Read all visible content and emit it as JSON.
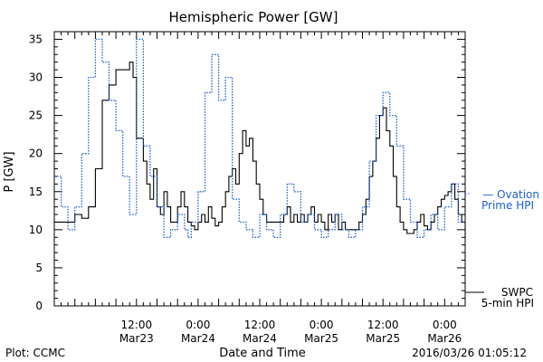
{
  "chart_data": {
    "type": "line",
    "title": "Hemispheric Power [GW]",
    "xlabel": "Date and Time",
    "ylabel": "P [GW]",
    "ylim": [
      0,
      36
    ],
    "yticks": [
      0,
      5,
      10,
      15,
      20,
      25,
      30,
      35
    ],
    "xlim": [
      -12,
      48
    ],
    "xticks": [
      {
        "x": 0,
        "time": "12:00",
        "date": "Mar23"
      },
      {
        "x": 9,
        "time": "0:00",
        "date": "Mar24"
      },
      {
        "x": 18,
        "time": "12:00",
        "date": "Mar24"
      },
      {
        "x": 27,
        "time": "0:00",
        "date": "Mar25"
      },
      {
        "x": 36,
        "time": "12:00",
        "date": "Mar25"
      },
      {
        "x": 45,
        "time": "0:00",
        "date": "Mar26"
      }
    ],
    "series": [
      {
        "name": "SWPC 5-min HPI",
        "color": "#000000",
        "style": "solid",
        "points": [
          [
            -12,
            11
          ],
          [
            -10,
            11
          ],
          [
            -9,
            12
          ],
          [
            -8,
            11.5
          ],
          [
            -7,
            13
          ],
          [
            -6,
            18
          ],
          [
            -5,
            27
          ],
          [
            -4,
            29
          ],
          [
            -3,
            31
          ],
          [
            -2,
            31
          ],
          [
            -1,
            32
          ],
          [
            -0.5,
            30
          ],
          [
            0,
            22
          ],
          [
            1,
            19
          ],
          [
            1.5,
            16
          ],
          [
            2,
            14
          ],
          [
            2.5,
            18
          ],
          [
            3,
            13
          ],
          [
            3.5,
            12
          ],
          [
            4,
            15
          ],
          [
            4.5,
            13
          ],
          [
            5,
            11
          ],
          [
            6,
            13
          ],
          [
            6.5,
            15
          ],
          [
            7,
            13
          ],
          [
            7.5,
            11
          ],
          [
            8,
            10.5
          ],
          [
            8.5,
            10
          ],
          [
            9,
            11
          ],
          [
            9.5,
            12
          ],
          [
            10,
            11
          ],
          [
            10.5,
            13
          ],
          [
            11,
            11.5
          ],
          [
            11.5,
            10.5
          ],
          [
            12,
            11
          ],
          [
            12.5,
            13
          ],
          [
            13,
            15
          ],
          [
            13.5,
            17
          ],
          [
            14,
            18
          ],
          [
            14.5,
            16
          ],
          [
            15,
            20
          ],
          [
            15.5,
            23
          ],
          [
            16,
            21
          ],
          [
            16.5,
            22
          ],
          [
            17,
            19
          ],
          [
            17.5,
            16
          ],
          [
            18,
            14
          ],
          [
            18.5,
            12
          ],
          [
            19,
            11
          ],
          [
            20,
            11
          ],
          [
            21,
            11
          ],
          [
            21.5,
            12
          ],
          [
            22,
            13
          ],
          [
            22.5,
            11
          ],
          [
            23,
            12
          ],
          [
            23.5,
            11
          ],
          [
            24,
            12
          ],
          [
            24.5,
            11
          ],
          [
            25,
            12
          ],
          [
            25.5,
            13
          ],
          [
            26,
            11
          ],
          [
            26.5,
            12
          ],
          [
            27,
            11
          ],
          [
            27.5,
            10
          ],
          [
            28,
            12
          ],
          [
            28.5,
            11
          ],
          [
            29,
            12
          ],
          [
            29.5,
            10
          ],
          [
            30,
            11
          ],
          [
            30.5,
            10
          ],
          [
            31,
            10
          ],
          [
            32,
            10
          ],
          [
            32.5,
            11
          ],
          [
            33,
            12
          ],
          [
            33.5,
            14
          ],
          [
            34,
            17
          ],
          [
            34.5,
            19
          ],
          [
            35,
            22
          ],
          [
            35.5,
            25
          ],
          [
            36,
            26
          ],
          [
            36.5,
            23
          ],
          [
            37,
            21
          ],
          [
            37.5,
            17
          ],
          [
            38,
            13
          ],
          [
            38.5,
            11
          ],
          [
            39,
            10
          ],
          [
            39.5,
            9.5
          ],
          [
            40,
            9.5
          ],
          [
            40.5,
            10
          ],
          [
            41,
            11
          ],
          [
            41.5,
            12
          ],
          [
            42,
            10.5
          ],
          [
            42.5,
            10
          ],
          [
            43,
            11
          ],
          [
            43.5,
            12
          ],
          [
            44,
            13
          ],
          [
            44.5,
            14
          ],
          [
            45,
            14.5
          ],
          [
            45.5,
            15
          ],
          [
            46,
            16
          ],
          [
            46.5,
            14
          ],
          [
            47,
            12
          ],
          [
            47.5,
            11
          ],
          [
            48,
            11
          ]
        ]
      },
      {
        "name": "Ovation Prime HPI",
        "color": "#1f5fcf",
        "style": "dotted",
        "points": [
          [
            -12,
            17
          ],
          [
            -11,
            13
          ],
          [
            -10,
            10
          ],
          [
            -9,
            13
          ],
          [
            -8,
            20
          ],
          [
            -7,
            30
          ],
          [
            -6,
            35
          ],
          [
            -5,
            32
          ],
          [
            -4,
            27
          ],
          [
            -3,
            23
          ],
          [
            -2,
            17
          ],
          [
            -1,
            12
          ],
          [
            0,
            35
          ],
          [
            1,
            21
          ],
          [
            2,
            17
          ],
          [
            3,
            13
          ],
          [
            4,
            9
          ],
          [
            5,
            10
          ],
          [
            6,
            12
          ],
          [
            7,
            10
          ],
          [
            7.5,
            9
          ],
          [
            8,
            11
          ],
          [
            9,
            15
          ],
          [
            10,
            28
          ],
          [
            11,
            33
          ],
          [
            12,
            27
          ],
          [
            13,
            30
          ],
          [
            14,
            14
          ],
          [
            15,
            11
          ],
          [
            16,
            10
          ],
          [
            17,
            9
          ],
          [
            18,
            12
          ],
          [
            19,
            10
          ],
          [
            20,
            9
          ],
          [
            21,
            12
          ],
          [
            22,
            16
          ],
          [
            23,
            15
          ],
          [
            24,
            11
          ],
          [
            25,
            12
          ],
          [
            26,
            10
          ],
          [
            27,
            9
          ],
          [
            28,
            10
          ],
          [
            29,
            12
          ],
          [
            30,
            10
          ],
          [
            31,
            9
          ],
          [
            32,
            10
          ],
          [
            33,
            13
          ],
          [
            34,
            19
          ],
          [
            35,
            25
          ],
          [
            36,
            28
          ],
          [
            37,
            25
          ],
          [
            38,
            21
          ],
          [
            39,
            14
          ],
          [
            40,
            11
          ],
          [
            41,
            9
          ],
          [
            42,
            10
          ],
          [
            43,
            12
          ],
          [
            44,
            10
          ],
          [
            45,
            13
          ],
          [
            46,
            16
          ],
          [
            47,
            11
          ],
          [
            48,
            9
          ]
        ]
      }
    ],
    "legend": [
      {
        "key": "ovation",
        "lines": [
          "— Ovation",
          "Prime HPI"
        ],
        "placement": "right-middle",
        "color": "#1f5fcf"
      },
      {
        "key": "swpc",
        "lines": [
          "SWPC",
          "5-min HPI"
        ],
        "placement": "right-bottom",
        "color": "#000000"
      }
    ],
    "grid": false
  },
  "footer": {
    "left": "Plot: CCMC",
    "right": "2016/03/26 01:05:12"
  }
}
